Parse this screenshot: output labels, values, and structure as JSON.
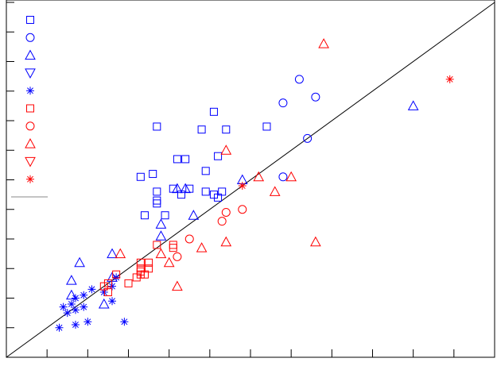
{
  "chart_data": {
    "type": "scatter",
    "xlim": [
      0,
      12
    ],
    "ylim": [
      0,
      12
    ],
    "xticks": [
      0,
      1,
      2,
      3,
      4,
      5,
      6,
      7,
      8,
      9,
      10,
      11,
      12
    ],
    "yticks": [
      0,
      1,
      2,
      3,
      4,
      5,
      6,
      7,
      8,
      9,
      10,
      11,
      12
    ],
    "reference_line": "y=x",
    "legend_position": "upper left",
    "series": [
      {
        "marker": "square",
        "color": "#0000ff",
        "x": [
          3.7,
          5.1,
          4.8,
          5.4,
          6.4,
          5.2,
          4.2,
          4.4,
          3.6,
          3.3,
          4.9,
          3.7,
          4.1,
          4.5,
          4.3,
          4.9,
          5.1,
          5.3,
          5.2,
          3.7,
          3.7,
          3.9,
          3.4
        ],
        "values": [
          7.8,
          8.3,
          7.7,
          7.7,
          7.8,
          6.8,
          6.7,
          6.7,
          6.2,
          6.1,
          6.3,
          5.6,
          5.7,
          5.7,
          5.5,
          5.6,
          5.5,
          5.6,
          5.4,
          5.3,
          5.2,
          4.8,
          4.8
        ]
      },
      {
        "marker": "circle",
        "color": "#0000ff",
        "x": [
          7.2,
          6.8,
          7.6,
          7.4,
          6.8
        ],
        "values": [
          9.4,
          8.6,
          8.8,
          7.4,
          6.1
        ]
      },
      {
        "marker": "triangle-up",
        "color": "#0000ff",
        "x": [
          10.0,
          5.8,
          4.4,
          4.2,
          4.6,
          3.8,
          3.8,
          2.6,
          1.8,
          1.6,
          1.6,
          2.6,
          2.4
        ],
        "values": [
          8.5,
          6.0,
          5.7,
          5.7,
          4.8,
          4.5,
          4.1,
          3.5,
          3.2,
          2.6,
          2.1,
          2.7,
          1.8
        ]
      },
      {
        "marker": "triangle-down",
        "color": "#0000ff",
        "x": [],
        "values": []
      },
      {
        "marker": "star",
        "color": "#0000ff",
        "x": [
          2.7,
          2.6,
          2.1,
          1.9,
          1.7,
          1.4,
          1.6,
          1.7,
          1.9,
          1.5,
          1.3,
          1.7,
          2.0,
          2.9,
          2.6,
          2.4
        ],
        "values": [
          2.7,
          2.4,
          2.3,
          2.1,
          2.0,
          1.7,
          1.8,
          1.6,
          1.7,
          1.5,
          1.0,
          1.1,
          1.2,
          1.2,
          1.9,
          2.2
        ]
      },
      {
        "marker": "square",
        "color": "#ff0000",
        "x": [
          4.1,
          4.1,
          3.7,
          3.5,
          3.3,
          3.3,
          3.3,
          3.4,
          3.2,
          3.3,
          3.0,
          2.5,
          2.5,
          2.4,
          2.7,
          3.5
        ],
        "values": [
          3.8,
          3.7,
          3.8,
          3.2,
          3.2,
          3.0,
          2.8,
          2.8,
          2.7,
          2.9,
          2.5,
          2.5,
          2.2,
          2.4,
          2.8,
          3.0
        ]
      },
      {
        "marker": "circle",
        "color": "#ff0000",
        "x": [
          5.8,
          5.4,
          5.3,
          4.5,
          4.2
        ],
        "values": [
          5.0,
          4.9,
          4.6,
          4.0,
          3.4
        ]
      },
      {
        "marker": "triangle-up",
        "color": "#ff0000",
        "x": [
          7.8,
          5.4,
          6.2,
          7.0,
          6.6,
          7.6,
          5.4,
          4.8,
          4.0,
          3.8,
          2.8,
          4.2
        ],
        "values": [
          10.6,
          7.0,
          6.1,
          6.1,
          5.6,
          3.9,
          3.9,
          3.7,
          3.2,
          3.5,
          3.5,
          2.4
        ]
      },
      {
        "marker": "triangle-down",
        "color": "#ff0000",
        "x": [],
        "values": []
      },
      {
        "marker": "star",
        "color": "#ff0000",
        "x": [
          10.9,
          5.8
        ],
        "values": [
          9.4,
          5.8
        ]
      }
    ]
  }
}
